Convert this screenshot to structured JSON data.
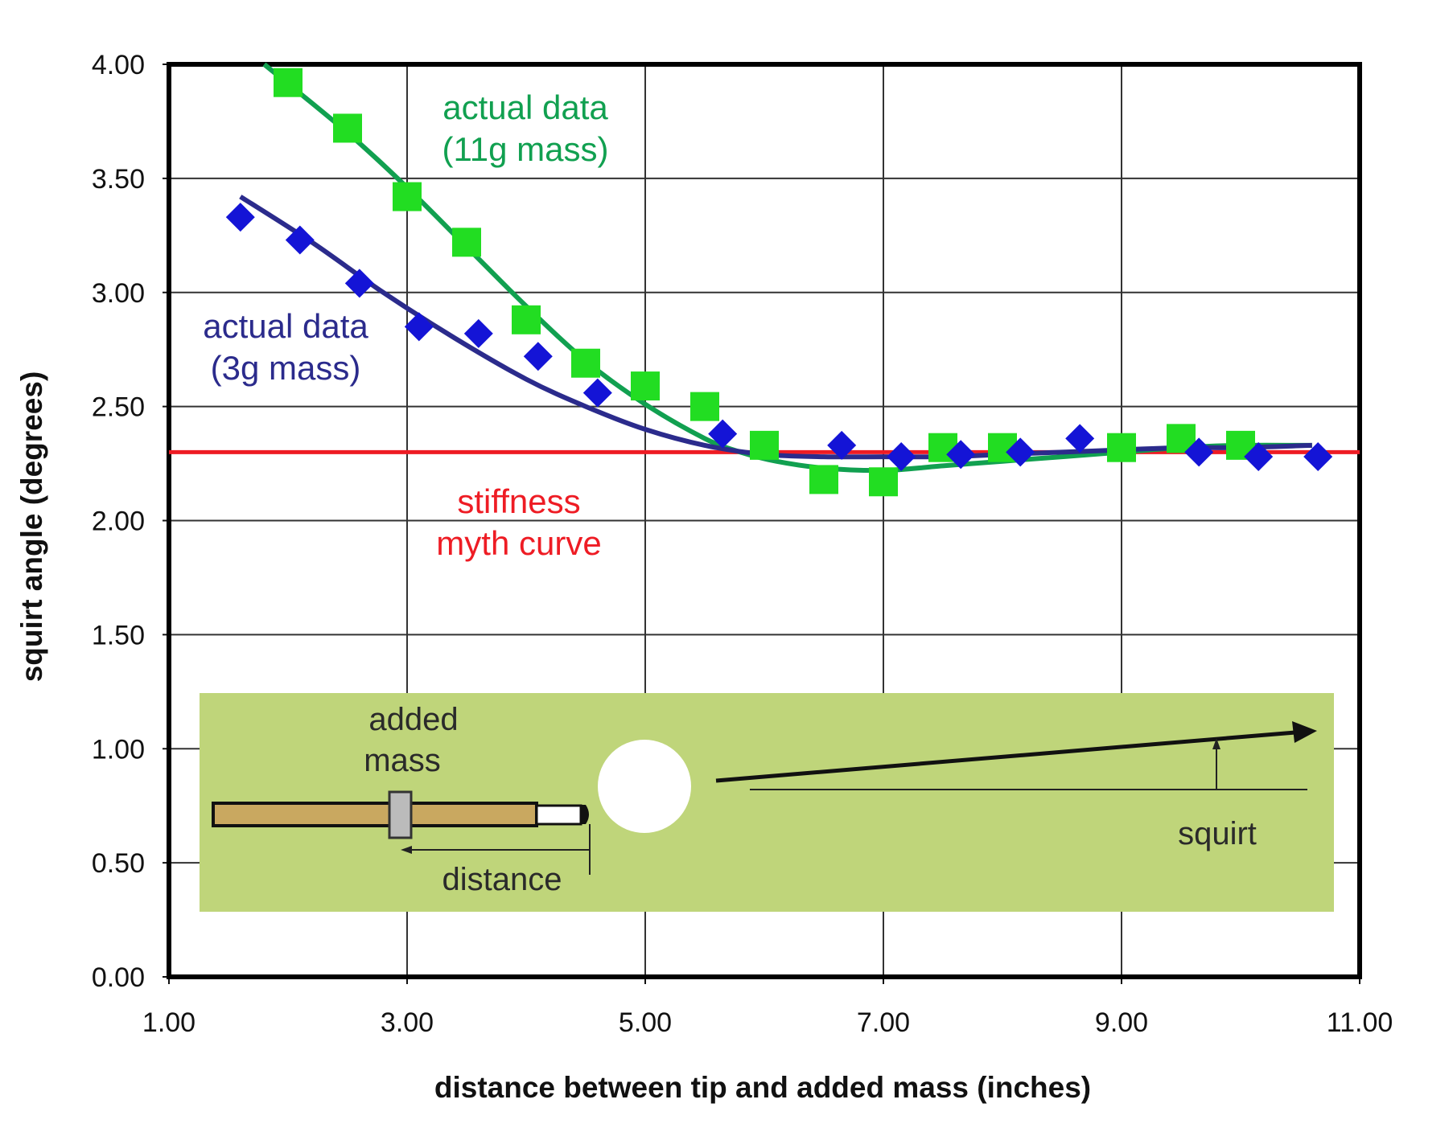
{
  "colors": {
    "green_series": "#22dd22",
    "green_line": "#11a050",
    "blue_series": "#1414d6",
    "blue_line": "#2b2b8c",
    "stiffness_line": "#ee1c24",
    "grid": "#333333",
    "inset_bg": "#bfd57a",
    "cue_wood": "#c9a860"
  },
  "chart_data": {
    "type": "scatter",
    "title": "",
    "xlabel": "distance between tip and added mass (inches)",
    "ylabel": "squirt angle (degrees)",
    "xlim": [
      1.0,
      11.0
    ],
    "ylim": [
      0.0,
      4.0
    ],
    "x_ticks": [
      1.0,
      3.0,
      5.0,
      7.0,
      9.0,
      11.0
    ],
    "x_tick_labels": [
      "1.00",
      "3.00",
      "5.00",
      "7.00",
      "9.00",
      "11.00"
    ],
    "y_ticks": [
      0.0,
      0.5,
      1.0,
      1.5,
      2.0,
      2.5,
      3.0,
      3.5,
      4.0
    ],
    "y_tick_labels": [
      "0.00",
      "0.50",
      "1.00",
      "1.50",
      "2.00",
      "2.50",
      "3.00",
      "3.50",
      "4.00"
    ],
    "grid": true,
    "series": [
      {
        "name": "actual data (11g mass)",
        "marker": "square",
        "x": [
          2.0,
          2.5,
          3.0,
          3.5,
          4.0,
          4.5,
          5.0,
          5.5,
          6.0,
          6.5,
          7.0,
          7.5,
          8.0,
          9.0,
          9.5,
          10.0
        ],
        "y": [
          3.92,
          3.72,
          3.42,
          3.22,
          2.88,
          2.69,
          2.59,
          2.5,
          2.33,
          2.18,
          2.17,
          2.32,
          2.32,
          2.32,
          2.36,
          2.33
        ]
      },
      {
        "name": "actual data (3g mass)",
        "marker": "diamond",
        "x": [
          1.6,
          2.1,
          2.6,
          3.1,
          3.6,
          4.1,
          4.6,
          5.65,
          6.65,
          7.15,
          7.65,
          8.15,
          8.65,
          9.65,
          10.15,
          10.65
        ],
        "y": [
          3.33,
          3.23,
          3.04,
          2.85,
          2.82,
          2.72,
          2.56,
          2.38,
          2.33,
          2.28,
          2.29,
          2.3,
          2.36,
          2.3,
          2.28,
          2.28
        ]
      },
      {
        "name": "fit 11g mass",
        "type": "line",
        "x": [
          1.8,
          2.5,
          3.0,
          3.5,
          4.0,
          4.5,
          5.0,
          5.5,
          5.8,
          6.1,
          6.5,
          7.0,
          7.5,
          8.0,
          8.5,
          9.0,
          9.5,
          10.0,
          10.6
        ],
        "y": [
          4.0,
          3.7,
          3.46,
          3.2,
          2.94,
          2.7,
          2.51,
          2.36,
          2.3,
          2.26,
          2.23,
          2.22,
          2.24,
          2.26,
          2.28,
          2.3,
          2.32,
          2.33,
          2.33
        ]
      },
      {
        "name": "fit 3g mass",
        "type": "line",
        "x": [
          1.6,
          2.2,
          2.8,
          3.4,
          4.0,
          4.5,
          5.0,
          5.5,
          6.0,
          6.5,
          7.0,
          7.5,
          8.0,
          8.5,
          9.0,
          9.5,
          10.0,
          10.6
        ],
        "y": [
          3.42,
          3.22,
          3.0,
          2.8,
          2.62,
          2.5,
          2.4,
          2.33,
          2.29,
          2.28,
          2.28,
          2.28,
          2.29,
          2.3,
          2.31,
          2.32,
          2.32,
          2.33
        ]
      },
      {
        "name": "stiffness myth curve",
        "type": "line",
        "x": [
          1.0,
          11.0
        ],
        "y": [
          2.3,
          2.3
        ]
      }
    ],
    "annotations": {
      "green_line1": "actual data",
      "green_line2": "(11g mass)",
      "blue_line1": "actual data",
      "blue_line2": "(3g mass)",
      "red_line1": "stiffness",
      "red_line2": "myth curve"
    }
  },
  "inset": {
    "added_mass_line1": "added",
    "added_mass_line2": "mass",
    "distance_label": "distance",
    "squirt_label": "squirt"
  }
}
